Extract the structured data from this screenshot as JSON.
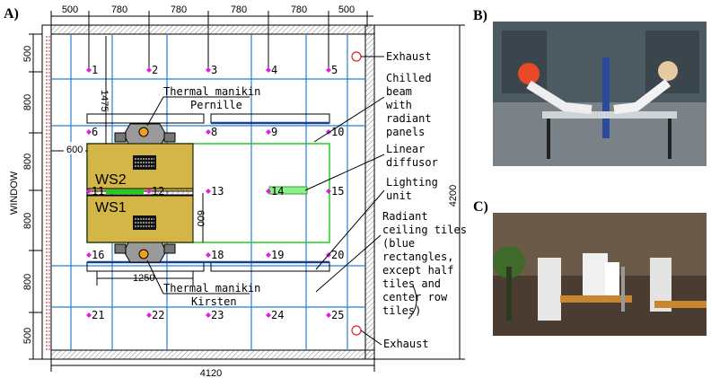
{
  "panels": {
    "a": "A)",
    "b": "B)",
    "c": "C)"
  },
  "top_dims": [
    "500",
    "780",
    "780",
    "780",
    "780",
    "500"
  ],
  "left_dims": [
    "500",
    "800",
    "800",
    "800",
    "800",
    "500"
  ],
  "bottom_dim": "4120",
  "right_dim": "4200",
  "inner_dims": {
    "d1475": "1475",
    "d600a": "600",
    "d600b": "600",
    "d1250": "1250"
  },
  "window_label": "WINDOW",
  "points": [
    "1",
    "2",
    "3",
    "4",
    "5",
    "6",
    "8",
    "9",
    "10",
    "11",
    "12",
    "13",
    "14",
    "15",
    "16",
    "18",
    "19",
    "20",
    "21",
    "22",
    "23",
    "24",
    "25"
  ],
  "workstations": {
    "ws2": "WS2",
    "ws1": "WS1"
  },
  "manikin_top": {
    "line1": "Thermal manikin",
    "line2": "Pernille"
  },
  "manikin_bottom": {
    "line1": "Thermal manikin",
    "line2": "Kirsten"
  },
  "annotations": {
    "exhaust_top": "Exhaust",
    "exhaust_bottom": "Exhaust",
    "chilled_beam": [
      "Chilled",
      "beam",
      "with",
      "radiant",
      "panels"
    ],
    "linear_diffusor": [
      "Linear",
      "diffusor"
    ],
    "lighting_unit": [
      "Lighting",
      "unit"
    ],
    "radiant_tiles": [
      "Radiant",
      "ceiling tiles",
      "(blue",
      "rectangles,",
      "except half",
      "tiles and",
      "center row",
      "tiles)"
    ]
  }
}
